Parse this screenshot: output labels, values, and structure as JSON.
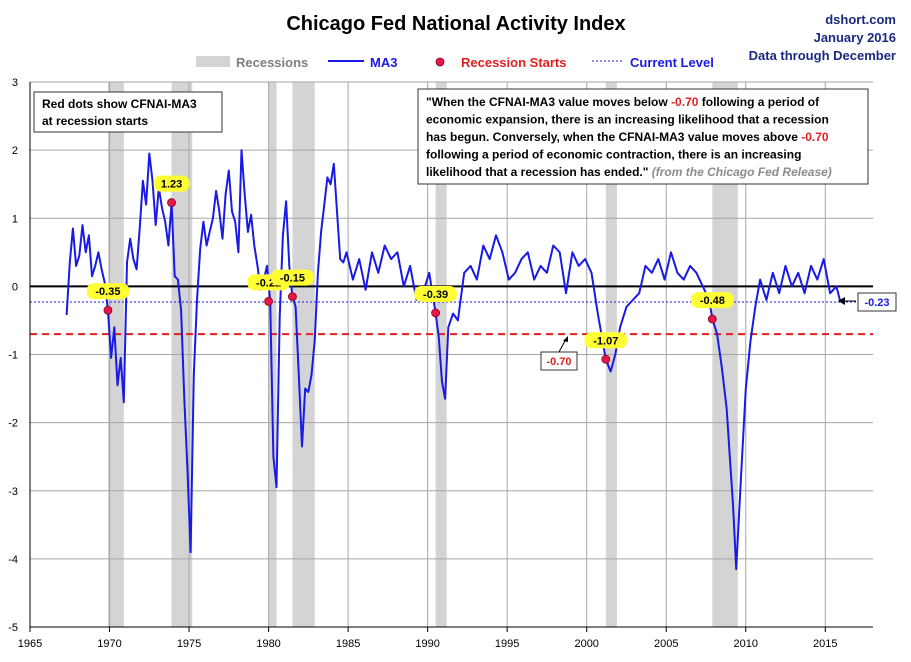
{
  "header": {
    "title": "Chicago Fed National Activity Index",
    "source": "dshort.com",
    "date": "January 2016",
    "through": "Data through December"
  },
  "legend": {
    "recessions": "Recessions",
    "ma3": "MA3",
    "starts": "Recession Starts",
    "current": "Current Level"
  },
  "notes": {
    "left": [
      "Red dots show CFNAI-MA3",
      "at recession starts"
    ],
    "quote": [
      [
        {
          "t": "\"When the CFNAI-MA3 value moves below "
        },
        {
          "t": "-0.70",
          "red": true
        },
        {
          "t": " following a period of"
        }
      ],
      [
        {
          "t": "economic expansion, there is an increasing likelihood that a recession"
        }
      ],
      [
        {
          "t": "has begun. Conversely, when the CFNAI-MA3 value moves above "
        },
        {
          "t": "-0.70",
          "red": true
        }
      ],
      [
        {
          "t": "following a period of economic contraction, there is an increasing"
        }
      ],
      [
        {
          "t": "likelihood that a recession has ended.\" "
        },
        {
          "t": "(from the Chicago Fed Release)",
          "gray": true
        }
      ]
    ]
  },
  "colors": {
    "line": "#1a1ae6",
    "recession": "#d4d4d4",
    "dot": "#e8174a",
    "threshold": "#e02020",
    "current": "#1a1ae6",
    "yellow": "#ffff33",
    "red_text": "#e02020"
  },
  "chart_data": {
    "type": "line",
    "xlim": [
      1965,
      2018
    ],
    "ylim": [
      -5,
      3
    ],
    "xticks": [
      1965,
      1970,
      1975,
      1980,
      1985,
      1990,
      1995,
      2000,
      2005,
      2010,
      2015
    ],
    "yticks": [
      -5,
      -4,
      -3,
      -2,
      -1,
      0,
      1,
      2,
      3
    ],
    "grid": true,
    "legend_position": "top",
    "threshold": -0.7,
    "threshold_label": "-0.70",
    "current_level": -0.23,
    "current_label": "-0.23",
    "recessions": [
      [
        1969.9,
        1970.9
      ],
      [
        1973.9,
        1975.2
      ],
      [
        1980.0,
        1980.5
      ],
      [
        1981.5,
        1982.9
      ],
      [
        1990.5,
        1991.2
      ],
      [
        2001.2,
        2001.9
      ],
      [
        2007.9,
        2009.5
      ]
    ],
    "recession_starts": [
      {
        "x": 1969.9,
        "y": -0.35,
        "label": "-0.35"
      },
      {
        "x": 1973.9,
        "y": 1.23,
        "label": "1.23"
      },
      {
        "x": 1980.0,
        "y": -0.22,
        "label": "-0.22"
      },
      {
        "x": 1981.5,
        "y": -0.15,
        "label": "-0.15"
      },
      {
        "x": 1990.5,
        "y": -0.39,
        "label": "-0.39"
      },
      {
        "x": 2001.2,
        "y": -1.07,
        "label": "-1.07"
      },
      {
        "x": 2007.9,
        "y": -0.48,
        "label": "-0.48"
      }
    ],
    "series": [
      {
        "x": [
          1967.3,
          1967.5,
          1967.7,
          1967.9,
          1968.1,
          1968.3,
          1968.5,
          1968.7,
          1968.9,
          1969.1,
          1969.3,
          1969.5,
          1969.7,
          1969.9,
          1970.1,
          1970.3,
          1970.5,
          1970.7,
          1970.9,
          1971.1,
          1971.3,
          1971.5,
          1971.7,
          1971.9,
          1972.1,
          1972.3,
          1972.5,
          1972.7,
          1972.9,
          1973.1,
          1973.3,
          1973.5,
          1973.7,
          1973.9,
          1974.1,
          1974.3,
          1974.5,
          1974.7,
          1974.9,
          1975.1,
          1975.3,
          1975.5,
          1975.7,
          1975.9,
          1976.1,
          1976.3,
          1976.5,
          1976.7,
          1976.9,
          1977.1,
          1977.3,
          1977.5,
          1977.7,
          1977.9,
          1978.1,
          1978.3,
          1978.5,
          1978.7,
          1978.9,
          1979.1,
          1979.3,
          1979.5,
          1979.7,
          1979.9,
          1980.1,
          1980.3,
          1980.5,
          1980.7,
          1980.9,
          1981.1,
          1981.3,
          1981.5,
          1981.7,
          1981.9,
          1982.1,
          1982.3,
          1982.5,
          1982.7,
          1982.9,
          1983.1,
          1983.3,
          1983.5,
          1983.7,
          1983.9,
          1984.1,
          1984.3,
          1984.5,
          1984.7,
          1984.9,
          1985.3,
          1985.7,
          1986.1,
          1986.5,
          1986.9,
          1987.3,
          1987.7,
          1988.1,
          1988.5,
          1988.9,
          1989.3,
          1989.7,
          1990.1,
          1990.5,
          1990.7,
          1990.9,
          1991.1,
          1991.3,
          1991.6,
          1991.9,
          1992.3,
          1992.7,
          1993.1,
          1993.5,
          1993.9,
          1994.3,
          1994.7,
          1995.1,
          1995.5,
          1995.9,
          1996.3,
          1996.7,
          1997.1,
          1997.5,
          1997.9,
          1998.3,
          1998.7,
          1999.1,
          1999.5,
          1999.9,
          2000.3,
          2000.7,
          2001.0,
          2001.2,
          2001.5,
          2001.8,
          2002.1,
          2002.5,
          2002.9,
          2003.3,
          2003.7,
          2004.1,
          2004.5,
          2004.9,
          2005.3,
          2005.7,
          2006.1,
          2006.5,
          2006.9,
          2007.3,
          2007.7,
          2007.9,
          2008.2,
          2008.5,
          2008.8,
          2009.0,
          2009.2,
          2009.4,
          2009.7,
          2010.0,
          2010.3,
          2010.6,
          2010.9,
          2011.3,
          2011.7,
          2012.1,
          2012.5,
          2012.9,
          2013.3,
          2013.7,
          2014.1,
          2014.5,
          2014.9,
          2015.3,
          2015.7,
          2015.95
        ],
        "y": [
          -0.42,
          0.35,
          0.85,
          0.3,
          0.45,
          0.9,
          0.5,
          0.75,
          0.15,
          0.3,
          0.5,
          0.25,
          0.05,
          -0.35,
          -1.05,
          -0.6,
          -1.45,
          -1.05,
          -1.7,
          0.35,
          0.7,
          0.4,
          0.25,
          0.85,
          1.55,
          1.2,
          1.95,
          1.55,
          0.9,
          1.45,
          1.15,
          0.95,
          0.6,
          1.23,
          0.15,
          0.1,
          -0.35,
          -1.65,
          -2.7,
          -3.9,
          -1.3,
          -0.2,
          0.55,
          0.95,
          0.6,
          0.8,
          1.0,
          1.4,
          1.1,
          0.7,
          1.35,
          1.7,
          1.1,
          0.95,
          0.5,
          2.0,
          1.35,
          0.8,
          1.05,
          0.6,
          0.3,
          -0.05,
          0.1,
          0.3,
          -0.22,
          -2.5,
          -2.95,
          -0.45,
          0.75,
          1.25,
          0.3,
          -0.15,
          -0.3,
          -1.3,
          -2.35,
          -1.5,
          -1.55,
          -1.3,
          -0.8,
          0.2,
          0.8,
          1.2,
          1.6,
          1.5,
          1.8,
          1.1,
          0.4,
          0.35,
          0.5,
          0.1,
          0.4,
          -0.05,
          0.5,
          0.2,
          0.6,
          0.4,
          0.5,
          0.0,
          0.3,
          -0.2,
          -0.1,
          0.2,
          -0.39,
          -0.75,
          -1.4,
          -1.65,
          -0.6,
          -0.4,
          -0.5,
          0.2,
          0.3,
          0.1,
          0.6,
          0.4,
          0.75,
          0.5,
          0.1,
          0.2,
          0.4,
          0.5,
          0.1,
          0.3,
          0.2,
          0.6,
          0.5,
          -0.1,
          0.5,
          0.3,
          0.4,
          0.2,
          -0.4,
          -0.8,
          -1.07,
          -1.25,
          -1.0,
          -0.6,
          -0.3,
          -0.2,
          -0.1,
          0.3,
          0.2,
          0.4,
          0.1,
          0.5,
          0.2,
          0.1,
          0.3,
          0.2,
          0.0,
          -0.2,
          -0.48,
          -0.7,
          -1.2,
          -1.8,
          -2.5,
          -3.2,
          -4.15,
          -2.8,
          -1.5,
          -0.8,
          -0.3,
          0.1,
          -0.2,
          0.2,
          -0.1,
          0.3,
          0.0,
          0.2,
          -0.1,
          0.3,
          0.1,
          0.4,
          -0.1,
          0.0,
          -0.23
        ]
      }
    ]
  }
}
